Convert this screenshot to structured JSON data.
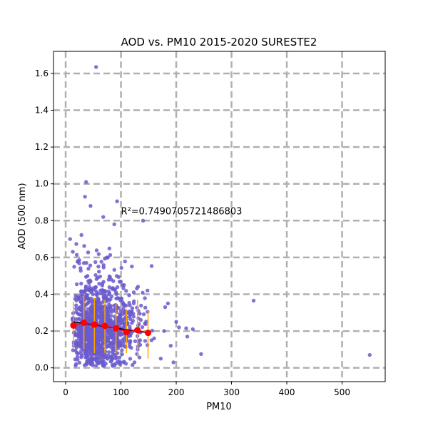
{
  "chart_data": {
    "type": "scatter",
    "title": "AOD vs. PM10 2015-2020 SURESTE2",
    "xlabel": "PM10",
    "ylabel": "AOD (500 nm)",
    "xlim": [
      -22,
      578
    ],
    "ylim": [
      -0.075,
      1.72
    ],
    "xticks": [
      0,
      100,
      200,
      300,
      400,
      500
    ],
    "yticks": [
      0.0,
      0.2,
      0.4,
      0.6,
      0.8,
      1.0,
      1.2,
      1.4,
      1.6
    ],
    "grid": true,
    "annotation": {
      "text": "R²=0.7490705721486803",
      "x": 100,
      "y": 0.85
    },
    "colors": {
      "points": "#6a5acd",
      "binned_means": "#ff0000",
      "error_bars": "#ffa500",
      "fit_line": "#000000"
    },
    "outliers": [
      {
        "x": 55,
        "y": 1.635
      },
      {
        "x": 37,
        "y": 1.01
      },
      {
        "x": 35,
        "y": 0.93
      },
      {
        "x": 45,
        "y": 0.88
      },
      {
        "x": 93,
        "y": 0.905
      },
      {
        "x": 68,
        "y": 0.82
      },
      {
        "x": 140,
        "y": 0.8
      },
      {
        "x": 8,
        "y": 0.7
      },
      {
        "x": 88,
        "y": 0.78
      },
      {
        "x": 340,
        "y": 0.365
      },
      {
        "x": 550,
        "y": 0.07
      },
      {
        "x": 245,
        "y": 0.075
      },
      {
        "x": 230,
        "y": 0.21
      },
      {
        "x": 218,
        "y": 0.215
      },
      {
        "x": 220,
        "y": 0.17
      },
      {
        "x": 200,
        "y": 0.25
      },
      {
        "x": 185,
        "y": 0.35
      },
      {
        "x": 190,
        "y": 0.12
      },
      {
        "x": 195,
        "y": 0.03
      },
      {
        "x": 178,
        "y": 0.2
      },
      {
        "x": 172,
        "y": 0.05
      },
      {
        "x": 205,
        "y": 0.22
      },
      {
        "x": 160,
        "y": 0.16
      },
      {
        "x": 148,
        "y": 0.42
      },
      {
        "x": 180,
        "y": 0.33
      }
    ],
    "binned_means": {
      "x": [
        14,
        33,
        52,
        71,
        91,
        110,
        130,
        149
      ],
      "y": [
        0.23,
        0.245,
        0.235,
        0.228,
        0.215,
        0.195,
        0.205,
        0.19
      ],
      "err_low": [
        0.1,
        0.1,
        0.08,
        0.08,
        0.08,
        0.08,
        0.06,
        0.05
      ],
      "err_high": [
        0.36,
        0.39,
        0.38,
        0.37,
        0.35,
        0.32,
        0.37,
        0.31
      ]
    },
    "fit_line": {
      "x": [
        14,
        149
      ],
      "y": [
        0.25,
        0.19
      ]
    }
  }
}
